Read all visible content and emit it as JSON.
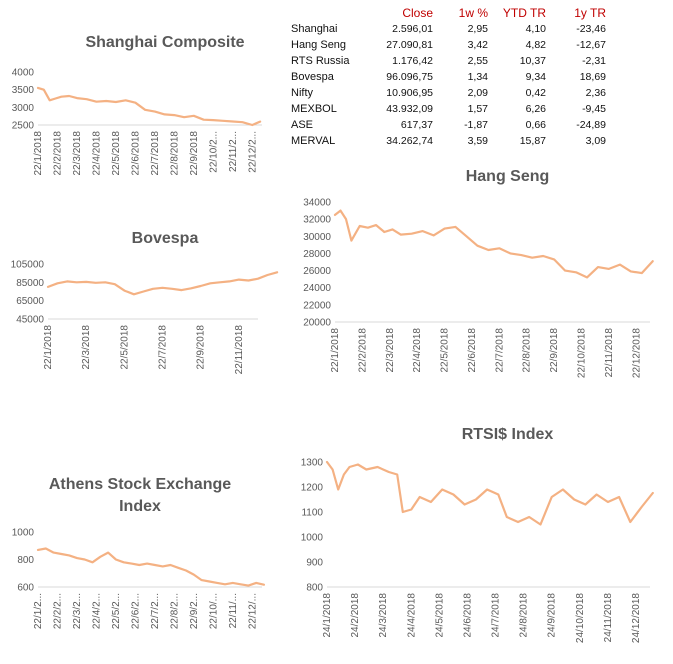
{
  "table": {
    "headers": [
      "",
      "Close",
      "1w %",
      "YTD TR",
      "1y TR"
    ],
    "rows": [
      [
        "Shanghai",
        "2.596,01",
        "2,95",
        "4,10",
        "-23,46"
      ],
      [
        "Hang Seng",
        "27.090,81",
        "3,42",
        "4,82",
        "-12,67"
      ],
      [
        "RTS Russia",
        "1.176,42",
        "2,55",
        "10,37",
        "-2,31"
      ],
      [
        "Bovespa",
        "96.096,75",
        "1,34",
        "9,34",
        "18,69"
      ],
      [
        "Nifty",
        "10.906,95",
        "2,09",
        "0,42",
        "2,36"
      ],
      [
        "MEXBOL",
        "43.932,09",
        "1,57",
        "6,26",
        "-9,45"
      ],
      [
        "ASE",
        "617,37",
        "-1,87",
        "0,66",
        "-24,89"
      ],
      [
        "MERVAL",
        "34.262,74",
        "3,59",
        "15,87",
        "3,09"
      ]
    ]
  },
  "chart_data": [
    {
      "id": "shanghai",
      "type": "line",
      "title": "Shanghai Composite",
      "color": "#f4b183",
      "ylim": [
        2500,
        4000
      ],
      "yticks": [
        "2500",
        "3000",
        "3500",
        "4000"
      ],
      "xticks": [
        "22/1/2018",
        "22/2/2018",
        "22/3/2018",
        "22/4/2018",
        "22/5/2018",
        "22/6/2018",
        "22/7/2018",
        "22/8/2018",
        "22/9/2018",
        "22/10/2...",
        "22/11/2...",
        "22/12/2..."
      ],
      "x": [
        0,
        0.3,
        0.6,
        0.9,
        1.2,
        1.6,
        2,
        2.5,
        3,
        3.5,
        4,
        4.5,
        5,
        5.5,
        6,
        6.5,
        7,
        7.5,
        8,
        8.5,
        9,
        9.5,
        10,
        10.5,
        11,
        11.4
      ],
      "values": [
        3550,
        3500,
        3200,
        3250,
        3300,
        3320,
        3260,
        3230,
        3160,
        3180,
        3150,
        3200,
        3130,
        2930,
        2880,
        2800,
        2780,
        2720,
        2760,
        2650,
        2640,
        2620,
        2600,
        2580,
        2500,
        2596
      ]
    },
    {
      "id": "bovespa",
      "type": "line",
      "title": "Bovespa",
      "color": "#f4b183",
      "ylim": [
        45000,
        105000
      ],
      "yticks": [
        "45000",
        "65000",
        "85000",
        "105000"
      ],
      "xticks": [
        "22/1/2018",
        "22/3/2018",
        "22/5/2018",
        "22/7/2018",
        "22/9/2018",
        "22/11/2018"
      ],
      "x": [
        0,
        0.25,
        0.5,
        0.75,
        1,
        1.25,
        1.5,
        1.75,
        2,
        2.25,
        2.5,
        2.75,
        3,
        3.25,
        3.5,
        3.75,
        4,
        4.25,
        4.5,
        4.75,
        5,
        5.25,
        5.5,
        5.75,
        6
      ],
      "values": [
        80000,
        84000,
        86000,
        85000,
        85500,
        84500,
        85000,
        83000,
        76000,
        72000,
        75000,
        78000,
        79000,
        78000,
        76500,
        78500,
        81000,
        84000,
        85000,
        86000,
        88000,
        87000,
        89000,
        93000,
        96000
      ]
    },
    {
      "id": "ase",
      "type": "line",
      "title": "Athens Stock Exchange Index",
      "color": "#f4b183",
      "ylim": [
        600,
        1000
      ],
      "yticks": [
        "600",
        "800",
        "1000"
      ],
      "xticks": [
        "22/1/2...",
        "22/2/2...",
        "22/3/2...",
        "22/4/2...",
        "22/5/2...",
        "22/6/2...",
        "22/7/2...",
        "22/8/2...",
        "22/9/2...",
        "22/10/...",
        "22/11/...",
        "22/12/..."
      ],
      "x": [
        0,
        0.4,
        0.8,
        1.2,
        1.6,
        2,
        2.4,
        2.8,
        3.2,
        3.6,
        4,
        4.4,
        4.8,
        5.2,
        5.6,
        6,
        6.4,
        6.8,
        7.2,
        7.6,
        8,
        8.4,
        8.8,
        9.2,
        9.6,
        10,
        10.4,
        10.8,
        11.2,
        11.6
      ],
      "values": [
        870,
        880,
        850,
        840,
        830,
        810,
        800,
        780,
        820,
        850,
        800,
        780,
        770,
        760,
        770,
        760,
        750,
        760,
        740,
        720,
        690,
        650,
        640,
        630,
        620,
        630,
        620,
        610,
        630,
        617
      ]
    },
    {
      "id": "hangseng",
      "type": "line",
      "title": "Hang Seng",
      "color": "#f4b183",
      "ylim": [
        20000,
        34000
      ],
      "yticks": [
        "20000",
        "22000",
        "24000",
        "26000",
        "28000",
        "30000",
        "32000",
        "34000"
      ],
      "xticks": [
        "22/1/2018",
        "22/2/2018",
        "22/3/2018",
        "22/4/2018",
        "22/5/2018",
        "22/6/2018",
        "22/7/2018",
        "22/8/2018",
        "22/9/2018",
        "22/10/2018",
        "22/11/2018",
        "22/12/2018"
      ],
      "x": [
        0,
        0.2,
        0.4,
        0.6,
        0.9,
        1.2,
        1.5,
        1.8,
        2.1,
        2.4,
        2.8,
        3.2,
        3.6,
        4,
        4.4,
        4.8,
        5.2,
        5.6,
        6,
        6.4,
        6.8,
        7.2,
        7.6,
        8,
        8.4,
        8.8,
        9.2,
        9.6,
        10,
        10.4,
        10.8,
        11.2,
        11.6
      ],
      "values": [
        32500,
        33000,
        32000,
        29500,
        31200,
        31000,
        31300,
        30500,
        30800,
        30200,
        30300,
        30600,
        30100,
        30900,
        31100,
        30000,
        28900,
        28400,
        28600,
        28000,
        27800,
        27500,
        27700,
        27300,
        26000,
        25800,
        25200,
        26400,
        26200,
        26700,
        25900,
        25700,
        27090
      ]
    },
    {
      "id": "rts",
      "type": "line",
      "title": "RTSI$ Index",
      "color": "#f4b183",
      "ylim": [
        800,
        1300
      ],
      "yticks": [
        "800",
        "900",
        "1000",
        "1100",
        "1200",
        "1300"
      ],
      "xticks": [
        "24/1/2018",
        "24/2/2018",
        "24/3/2018",
        "24/4/2018",
        "24/5/2018",
        "24/6/2018",
        "24/7/2018",
        "24/8/2018",
        "24/9/2018",
        "24/10/2018",
        "24/11/2018",
        "24/12/2018"
      ],
      "x": [
        0,
        0.2,
        0.4,
        0.6,
        0.8,
        1.1,
        1.4,
        1.8,
        2.2,
        2.5,
        2.7,
        3,
        3.3,
        3.7,
        4.1,
        4.5,
        4.9,
        5.3,
        5.7,
        6.1,
        6.4,
        6.8,
        7.2,
        7.6,
        8,
        8.4,
        8.8,
        9.2,
        9.6,
        10,
        10.4,
        10.8,
        11.2,
        11.6
      ],
      "values": [
        1300,
        1270,
        1190,
        1250,
        1280,
        1290,
        1270,
        1280,
        1260,
        1250,
        1100,
        1110,
        1160,
        1140,
        1190,
        1170,
        1130,
        1150,
        1190,
        1170,
        1080,
        1060,
        1080,
        1050,
        1160,
        1190,
        1150,
        1130,
        1170,
        1140,
        1160,
        1060,
        1120,
        1176
      ]
    }
  ]
}
